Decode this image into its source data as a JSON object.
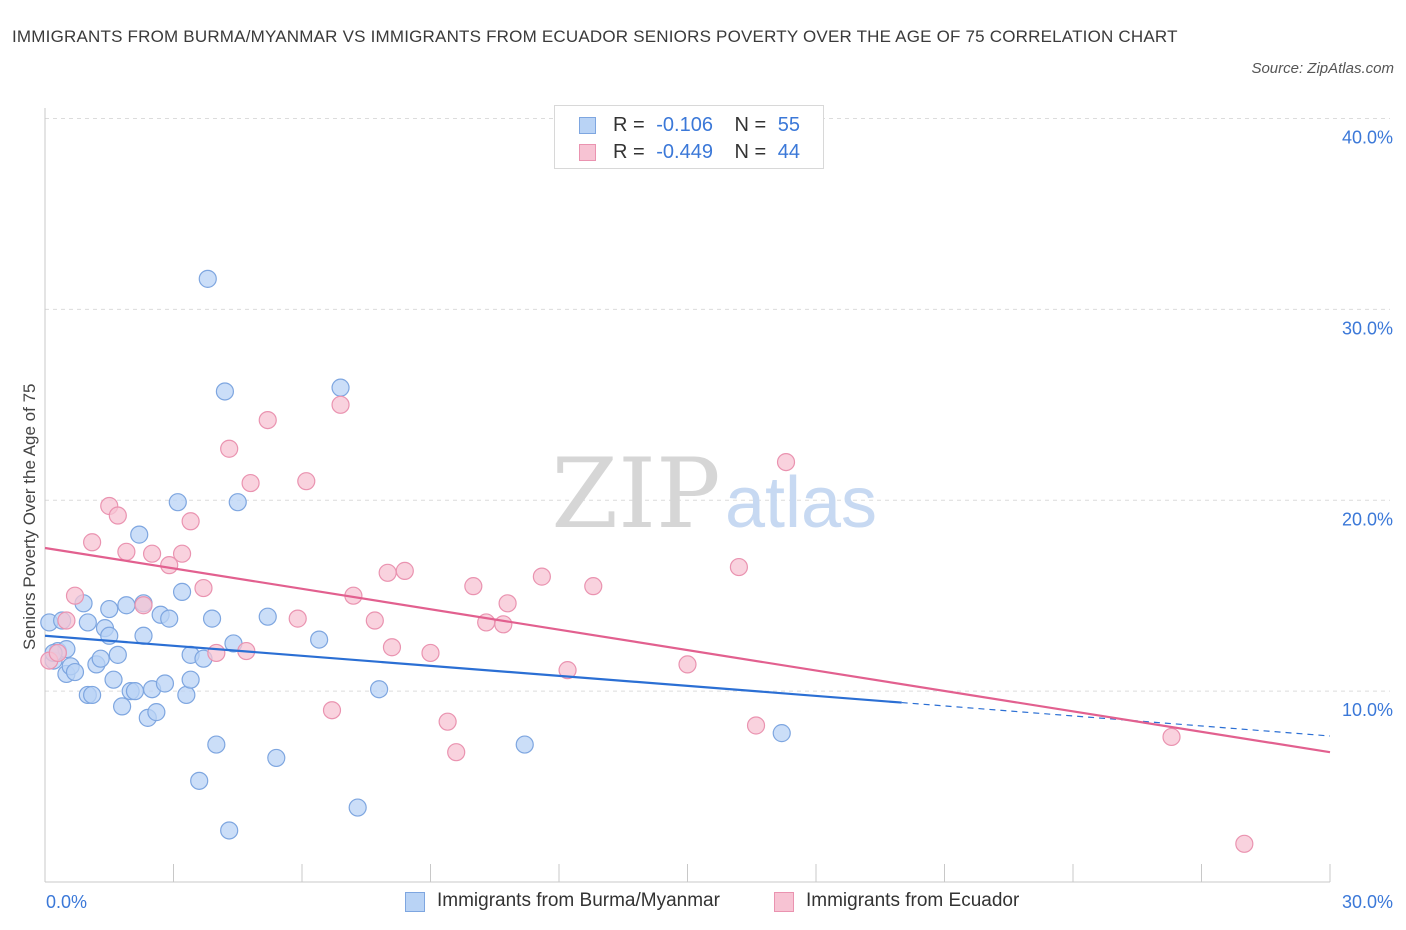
{
  "title": "IMMIGRANTS FROM BURMA/MYANMAR VS IMMIGRANTS FROM ECUADOR SENIORS POVERTY OVER THE AGE OF 75 CORRELATION CHART",
  "source": "Source: ZipAtlas.com",
  "watermark": {
    "zip": "ZIP",
    "atlas": "atlas"
  },
  "colors": {
    "blue_fill": "#b9d3f5",
    "blue_stroke": "#7ea6e0",
    "blue_line": "#2b6fd4",
    "pink_fill": "#f7c3d3",
    "pink_stroke": "#ea93b0",
    "pink_line": "#e2608f",
    "tick_text": "#3b78d8",
    "grid": "#dcdcdc"
  },
  "legend_top": [
    {
      "r_label": "R =",
      "r_value": "-0.106",
      "n_label": "N =",
      "n_value": "55"
    },
    {
      "r_label": "R =",
      "r_value": "-0.449",
      "n_label": "N =",
      "n_value": "44"
    }
  ],
  "legend_bottom": [
    {
      "label": "Immigrants from Burma/Myanmar"
    },
    {
      "label": "Immigrants from Ecuador"
    }
  ],
  "chart_data": {
    "type": "scatter",
    "title": "IMMIGRANTS FROM BURMA/MYANMAR VS IMMIGRANTS FROM ECUADOR SENIORS POVERTY OVER THE AGE OF 75 CORRELATION CHART",
    "xlabel": "",
    "ylabel": "Seniors Poverty Over the Age of 75",
    "xlim": [
      0,
      30
    ],
    "ylim": [
      0,
      40
    ],
    "x_tick_labels": [
      "0.0%",
      "30.0%"
    ],
    "y_ticks": [
      10,
      20,
      30,
      40
    ],
    "y_tick_labels": [
      "10.0%",
      "20.0%",
      "30.0%",
      "40.0%"
    ],
    "grid": true,
    "legend_position": "top-center",
    "series": [
      {
        "name": "Immigrants from Burma/Myanmar",
        "color": "#7ea6e0",
        "trend": {
          "x0": 0,
          "y0": 12.9,
          "x1": 20,
          "y1": 9.4,
          "dashed_to_x": 30
        },
        "points": [
          [
            0.1,
            13.6
          ],
          [
            0.2,
            11.6
          ],
          [
            0.3,
            12.1
          ],
          [
            0.4,
            13.7
          ],
          [
            0.5,
            10.9
          ],
          [
            0.5,
            12.2
          ],
          [
            0.6,
            11.3
          ],
          [
            0.7,
            11.0
          ],
          [
            0.9,
            14.6
          ],
          [
            1.0,
            13.6
          ],
          [
            1.0,
            9.8
          ],
          [
            1.1,
            9.8
          ],
          [
            1.2,
            11.4
          ],
          [
            1.3,
            11.7
          ],
          [
            1.4,
            13.3
          ],
          [
            1.5,
            12.9
          ],
          [
            1.5,
            14.3
          ],
          [
            1.6,
            10.6
          ],
          [
            1.7,
            11.9
          ],
          [
            1.8,
            9.2
          ],
          [
            1.9,
            14.5
          ],
          [
            2.0,
            10.0
          ],
          [
            2.1,
            10.0
          ],
          [
            2.2,
            18.2
          ],
          [
            2.3,
            12.9
          ],
          [
            2.3,
            14.6
          ],
          [
            2.4,
            8.6
          ],
          [
            2.5,
            10.1
          ],
          [
            2.6,
            8.9
          ],
          [
            2.7,
            14.0
          ],
          [
            2.8,
            10.4
          ],
          [
            2.9,
            13.8
          ],
          [
            3.1,
            19.9
          ],
          [
            3.2,
            15.2
          ],
          [
            3.3,
            9.8
          ],
          [
            3.4,
            11.9
          ],
          [
            3.4,
            10.6
          ],
          [
            3.6,
            5.3
          ],
          [
            3.7,
            11.7
          ],
          [
            3.8,
            31.6
          ],
          [
            3.9,
            13.8
          ],
          [
            4.0,
            7.2
          ],
          [
            4.2,
            25.7
          ],
          [
            4.3,
            2.7
          ],
          [
            4.4,
            12.5
          ],
          [
            4.5,
            19.9
          ],
          [
            5.2,
            13.9
          ],
          [
            5.4,
            6.5
          ],
          [
            6.4,
            12.7
          ],
          [
            6.9,
            25.9
          ],
          [
            7.3,
            3.9
          ],
          [
            7.8,
            10.1
          ],
          [
            11.2,
            7.2
          ],
          [
            17.2,
            7.8
          ],
          [
            0.2,
            12.0
          ]
        ]
      },
      {
        "name": "Immigrants from Ecuador",
        "color": "#ea93b0",
        "trend": {
          "x0": 0,
          "y0": 17.5,
          "x1": 30,
          "y1": 6.8
        },
        "points": [
          [
            0.1,
            11.6
          ],
          [
            0.3,
            12.0
          ],
          [
            0.5,
            13.7
          ],
          [
            0.7,
            15.0
          ],
          [
            1.1,
            17.8
          ],
          [
            1.5,
            19.7
          ],
          [
            1.7,
            19.2
          ],
          [
            1.9,
            17.3
          ],
          [
            2.3,
            14.5
          ],
          [
            2.5,
            17.2
          ],
          [
            2.9,
            16.6
          ],
          [
            3.2,
            17.2
          ],
          [
            3.4,
            18.9
          ],
          [
            3.7,
            15.4
          ],
          [
            4.0,
            12.0
          ],
          [
            4.3,
            22.7
          ],
          [
            4.7,
            12.1
          ],
          [
            4.8,
            20.9
          ],
          [
            5.2,
            24.2
          ],
          [
            5.9,
            13.8
          ],
          [
            6.1,
            21.0
          ],
          [
            6.7,
            9.0
          ],
          [
            6.9,
            25.0
          ],
          [
            7.2,
            15.0
          ],
          [
            7.7,
            13.7
          ],
          [
            8.0,
            16.2
          ],
          [
            8.1,
            12.3
          ],
          [
            8.4,
            16.3
          ],
          [
            9.0,
            12.0
          ],
          [
            9.4,
            8.4
          ],
          [
            9.6,
            6.8
          ],
          [
            10.0,
            15.5
          ],
          [
            10.3,
            13.6
          ],
          [
            10.7,
            13.5
          ],
          [
            10.8,
            14.6
          ],
          [
            11.6,
            16.0
          ],
          [
            12.2,
            11.1
          ],
          [
            12.8,
            15.5
          ],
          [
            15.0,
            11.4
          ],
          [
            16.2,
            16.5
          ],
          [
            16.6,
            8.2
          ],
          [
            17.3,
            22.0
          ],
          [
            26.3,
            7.6
          ],
          [
            28.0,
            2.0
          ]
        ]
      }
    ]
  }
}
